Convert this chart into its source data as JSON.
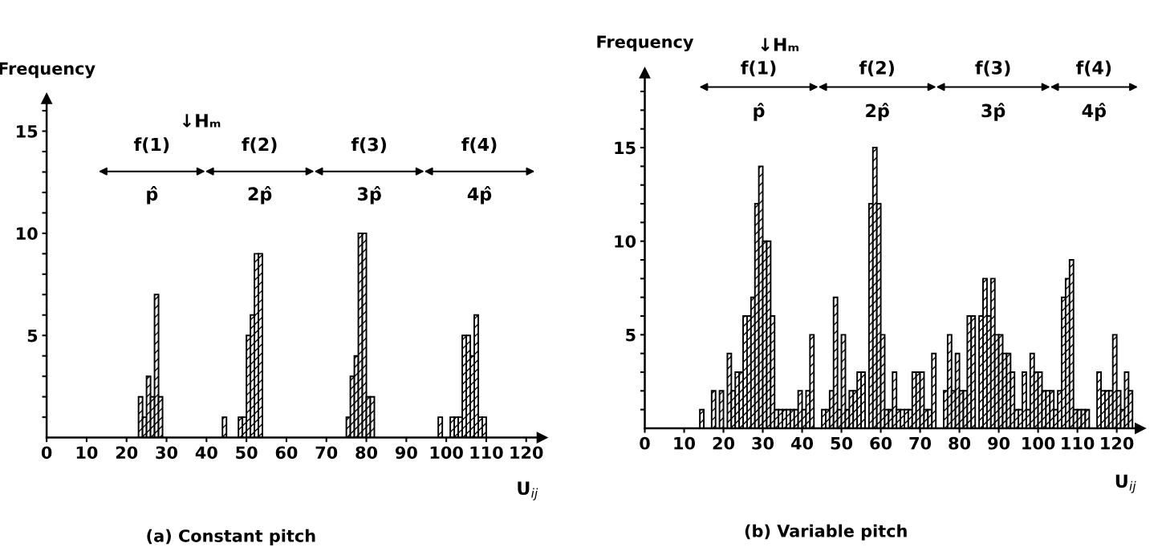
{
  "chart_data": [
    {
      "type": "histogram",
      "title": "(a) Constant pitch",
      "xlabel": "U$_{ij}$",
      "ylabel": "Frequency",
      "bins": [
        23,
        24,
        25,
        26,
        27,
        28,
        29,
        30,
        31,
        32,
        33,
        34,
        35,
        36,
        37,
        38,
        39,
        40,
        41,
        42,
        43,
        44,
        45,
        46,
        47,
        48,
        49,
        50,
        51,
        52,
        53,
        54,
        55,
        56,
        57,
        58,
        59,
        60,
        61,
        62,
        63,
        64,
        65,
        66,
        67,
        68,
        69,
        70,
        71,
        72,
        73,
        74,
        75,
        76,
        77,
        78,
        79,
        80,
        81,
        82,
        83,
        84,
        85,
        86,
        87,
        88,
        89,
        90,
        91,
        92,
        93,
        94,
        95,
        96,
        97,
        98,
        99,
        100,
        101,
        102,
        103,
        104,
        105,
        106,
        107,
        108,
        109,
        110
      ],
      "values": [
        2,
        1,
        3,
        2,
        7,
        2,
        0,
        0,
        0,
        0,
        0,
        0,
        0,
        0,
        0,
        0,
        0,
        0,
        0,
        0,
        0,
        1,
        0,
        0,
        0,
        1,
        1,
        5,
        6,
        9,
        9,
        0,
        0,
        0,
        0,
        0,
        0,
        0,
        0,
        0,
        0,
        0,
        0,
        0,
        0,
        0,
        0,
        0,
        0,
        0,
        0,
        0,
        1,
        3,
        4,
        10,
        10,
        2,
        2,
        0,
        0,
        0,
        0,
        0,
        0,
        0,
        0,
        0,
        0,
        0,
        0,
        0,
        0,
        0,
        0,
        1,
        0,
        0,
        1,
        1,
        1,
        5,
        5,
        4,
        6,
        1,
        1
      ],
      "color": "#000000",
      "xlim": [
        0,
        124
      ],
      "ylim": [
        0,
        16.6
      ],
      "xticks": [
        0,
        10,
        20,
        30,
        40,
        50,
        60,
        70,
        80,
        90,
        100,
        110,
        120
      ],
      "yticks": [
        {
          "value": 1,
          "label": null
        },
        {
          "value": 2,
          "label": null
        },
        {
          "value": 3,
          "label": null
        },
        {
          "value": 4,
          "label": null
        },
        5,
        {
          "value": 6,
          "label": null
        },
        {
          "value": 7,
          "label": null
        },
        {
          "value": 8,
          "label": null
        },
        {
          "value": 9,
          "label": null
        },
        10,
        {
          "value": 11,
          "label": null
        },
        {
          "value": 12,
          "label": null
        },
        {
          "value": 13,
          "label": null
        },
        {
          "value": 14,
          "label": null
        },
        15,
        {
          "value": 16,
          "label": null
        }
      ],
      "grid": false,
      "annotations": [
        "↓Hₘ",
        "f(1)",
        "f(2)",
        "f(3)",
        "f(4)",
        "p̂",
        "2p̂",
        "3p̂",
        "4p̂"
      ]
    },
    {
      "type": "histogram",
      "title": "(b) Variable pitch",
      "xlabel": "U$_{ij}$",
      "ylabel": "Frequency",
      "bins": [
        14,
        15,
        16,
        17,
        18,
        19,
        20,
        21,
        22,
        23,
        24,
        25,
        26,
        27,
        28,
        29,
        30,
        31,
        32,
        33,
        34,
        35,
        36,
        37,
        38,
        39,
        40,
        41,
        42,
        43,
        44,
        45,
        46,
        47,
        48,
        49,
        50,
        51,
        52,
        53,
        54,
        55,
        56,
        57,
        58,
        59,
        60,
        61,
        62,
        63,
        64,
        65,
        66,
        67,
        68,
        69,
        70,
        71,
        72,
        73,
        74,
        75,
        76,
        77,
        78,
        79,
        80,
        81,
        82,
        83,
        84,
        85,
        86,
        87,
        88,
        89,
        90,
        91,
        92,
        93,
        94,
        95,
        96,
        97,
        98,
        99,
        100,
        101,
        102,
        103,
        104,
        105,
        106,
        107,
        108,
        109,
        110,
        111,
        112,
        113,
        114,
        115,
        116,
        117,
        118,
        119,
        120,
        121,
        122,
        123,
        124
      ],
      "values": [
        1,
        0,
        0,
        2,
        0,
        2,
        0,
        4,
        2,
        3,
        3,
        6,
        6,
        7,
        12,
        14,
        10,
        10,
        6,
        1,
        1,
        1,
        1,
        1,
        1,
        2,
        1,
        2,
        5,
        0,
        0,
        1,
        1,
        2,
        7,
        1,
        5,
        1,
        2,
        2,
        3,
        3,
        0,
        12,
        15,
        12,
        5,
        1,
        1,
        3,
        1,
        1,
        1,
        1,
        3,
        3,
        3,
        1,
        1,
        4,
        0,
        0,
        2,
        5,
        2,
        4,
        2,
        2,
        6,
        6,
        0,
        6,
        8,
        6,
        8,
        5,
        5,
        4,
        4,
        3,
        1,
        1,
        3,
        1,
        4,
        3,
        3,
        2,
        2,
        2,
        1,
        2,
        7,
        8,
        9,
        1,
        1,
        1,
        1,
        0,
        0,
        3,
        2,
        2,
        2,
        5,
        2,
        1,
        3,
        2
      ],
      "color": "#000000",
      "xlim": [
        0,
        126
      ],
      "ylim": [
        0,
        19
      ],
      "xticks": [
        0,
        10,
        20,
        30,
        40,
        50,
        60,
        70,
        80,
        90,
        100,
        110,
        120
      ],
      "yticks": [
        {
          "value": 1,
          "label": null
        },
        {
          "value": 2,
          "label": null
        },
        {
          "value": 3,
          "label": null
        },
        {
          "value": 4,
          "label": null
        },
        5,
        {
          "value": 6,
          "label": null
        },
        {
          "value": 7,
          "label": null
        },
        {
          "value": 8,
          "label": null
        },
        {
          "value": 9,
          "label": null
        },
        10,
        {
          "value": 11,
          "label": null
        },
        {
          "value": 12,
          "label": null
        },
        {
          "value": 13,
          "label": null
        },
        {
          "value": 14,
          "label": null
        },
        15,
        {
          "value": 16,
          "label": null
        },
        {
          "value": 17,
          "label": null
        },
        {
          "value": 18,
          "label": null
        }
      ],
      "grid": false,
      "annotations": [
        "↓Hₘ",
        "f(1)",
        "f(2)",
        "f(3)",
        "f(4)",
        "p̂",
        "2p̂",
        "3p̂",
        "4p̂"
      ]
    }
  ]
}
